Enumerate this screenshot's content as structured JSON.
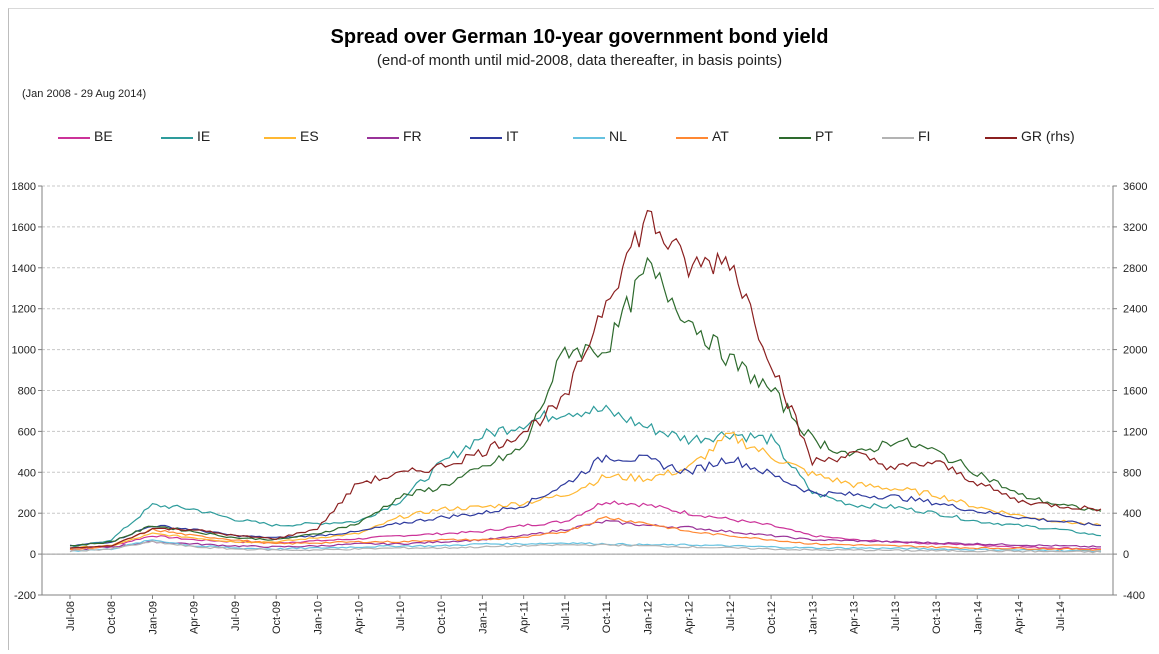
{
  "chart_data": {
    "type": "line",
    "title": "Spread over German 10-year government bond yield",
    "subtitle": "(end-of month until mid-2008, data thereafter, in basis points)",
    "date_range": "(Jan 2008 - 29 Aug 2014)",
    "x_tick_labels": [
      "Jul-08",
      "Oct-08",
      "Jan-09",
      "Apr-09",
      "Jul-09",
      "Oct-09",
      "Jan-10",
      "Apr-10",
      "Jul-10",
      "Oct-10",
      "Jan-11",
      "Apr-11",
      "Jul-11",
      "Oct-11",
      "Jan-12",
      "Apr-12",
      "Jul-12",
      "Oct-12",
      "Jan-13",
      "Apr-13",
      "Jul-13",
      "Oct-13",
      "Jan-14",
      "Apr-14",
      "Jul-14"
    ],
    "y_left": {
      "ylim": [
        -200,
        1800
      ],
      "ticks": [
        -200,
        0,
        200,
        400,
        600,
        800,
        1000,
        1200,
        1400,
        1600,
        1800
      ]
    },
    "y_right": {
      "ylim": [
        -400,
        3600
      ],
      "ticks": [
        -400,
        0,
        400,
        800,
        1200,
        1600,
        2000,
        2400,
        2800,
        3200,
        3600
      ]
    },
    "grid": true,
    "legend_position": "top",
    "x": [
      "Jul-08",
      "Oct-08",
      "Jan-09",
      "Apr-09",
      "Jul-09",
      "Oct-09",
      "Jan-10",
      "Apr-10",
      "Jul-10",
      "Oct-10",
      "Jan-11",
      "Apr-11",
      "Jul-11",
      "Oct-11",
      "Jan-12",
      "Apr-12",
      "Jul-12",
      "Oct-12",
      "Jan-13",
      "Apr-13",
      "Jul-13",
      "Oct-13",
      "Jan-14",
      "Apr-14",
      "Jul-14",
      "Aug-14"
    ],
    "series": [
      {
        "name": "BE",
        "color": "#cc3399",
        "axis": "left",
        "values": [
          25,
          40,
          90,
          70,
          60,
          55,
          65,
          75,
          90,
          100,
          110,
          140,
          160,
          260,
          240,
          200,
          170,
          140,
          90,
          70,
          60,
          50,
          45,
          35,
          30,
          25
        ]
      },
      {
        "name": "IE",
        "color": "#2e9c9c",
        "axis": "left",
        "values": [
          30,
          70,
          240,
          220,
          170,
          140,
          150,
          160,
          260,
          440,
          580,
          640,
          700,
          700,
          620,
          560,
          590,
          560,
          300,
          240,
          230,
          200,
          160,
          140,
          120,
          90
        ]
      },
      {
        "name": "ES",
        "color": "#ffb833",
        "axis": "left",
        "values": [
          30,
          40,
          100,
          80,
          60,
          60,
          80,
          100,
          180,
          220,
          230,
          250,
          290,
          380,
          370,
          420,
          580,
          480,
          390,
          340,
          320,
          290,
          230,
          190,
          160,
          140
        ]
      },
      {
        "name": "FR",
        "color": "#993399",
        "axis": "left",
        "values": [
          20,
          35,
          60,
          50,
          40,
          35,
          40,
          50,
          50,
          60,
          70,
          90,
          120,
          160,
          140,
          130,
          110,
          90,
          70,
          65,
          60,
          55,
          50,
          45,
          40,
          35
        ]
      },
      {
        "name": "IT",
        "color": "#2e3a9e",
        "axis": "left",
        "values": [
          40,
          60,
          140,
          120,
          90,
          80,
          90,
          110,
          150,
          180,
          200,
          240,
          340,
          480,
          460,
          400,
          470,
          390,
          300,
          290,
          280,
          250,
          210,
          180,
          160,
          140
        ]
      },
      {
        "name": "NL",
        "color": "#66c2e0",
        "axis": "left",
        "values": [
          15,
          25,
          70,
          40,
          30,
          25,
          30,
          35,
          40,
          40,
          50,
          50,
          55,
          50,
          45,
          45,
          40,
          35,
          30,
          30,
          28,
          25,
          22,
          20,
          18,
          15
        ]
      },
      {
        "name": "AT",
        "color": "#ff8833",
        "axis": "left",
        "values": [
          20,
          40,
          120,
          90,
          70,
          50,
          55,
          60,
          60,
          70,
          70,
          80,
          110,
          180,
          150,
          110,
          90,
          70,
          50,
          45,
          40,
          35,
          30,
          28,
          25,
          22
        ]
      },
      {
        "name": "PT",
        "color": "#2e6b2e",
        "axis": "left",
        "values": [
          40,
          60,
          140,
          110,
          80,
          70,
          100,
          150,
          280,
          330,
          420,
          520,
          1000,
          1000,
          1400,
          1150,
          950,
          800,
          560,
          480,
          560,
          500,
          400,
          290,
          240,
          210
        ]
      },
      {
        "name": "FI",
        "color": "#b3b3b3",
        "axis": "left",
        "values": [
          15,
          25,
          60,
          35,
          25,
          20,
          20,
          25,
          30,
          30,
          35,
          40,
          45,
          45,
          40,
          35,
          30,
          25,
          20,
          20,
          18,
          16,
          15,
          14,
          12,
          10
        ]
      },
      {
        "name": "GR (rhs)",
        "color": "#8b2020",
        "axis": "right",
        "values": [
          60,
          80,
          250,
          240,
          180,
          150,
          250,
          700,
          780,
          860,
          1000,
          1200,
          1500,
          2500,
          3300,
          2800,
          2900,
          1900,
          900,
          980,
          840,
          900,
          700,
          520,
          470,
          440
        ]
      }
    ]
  }
}
